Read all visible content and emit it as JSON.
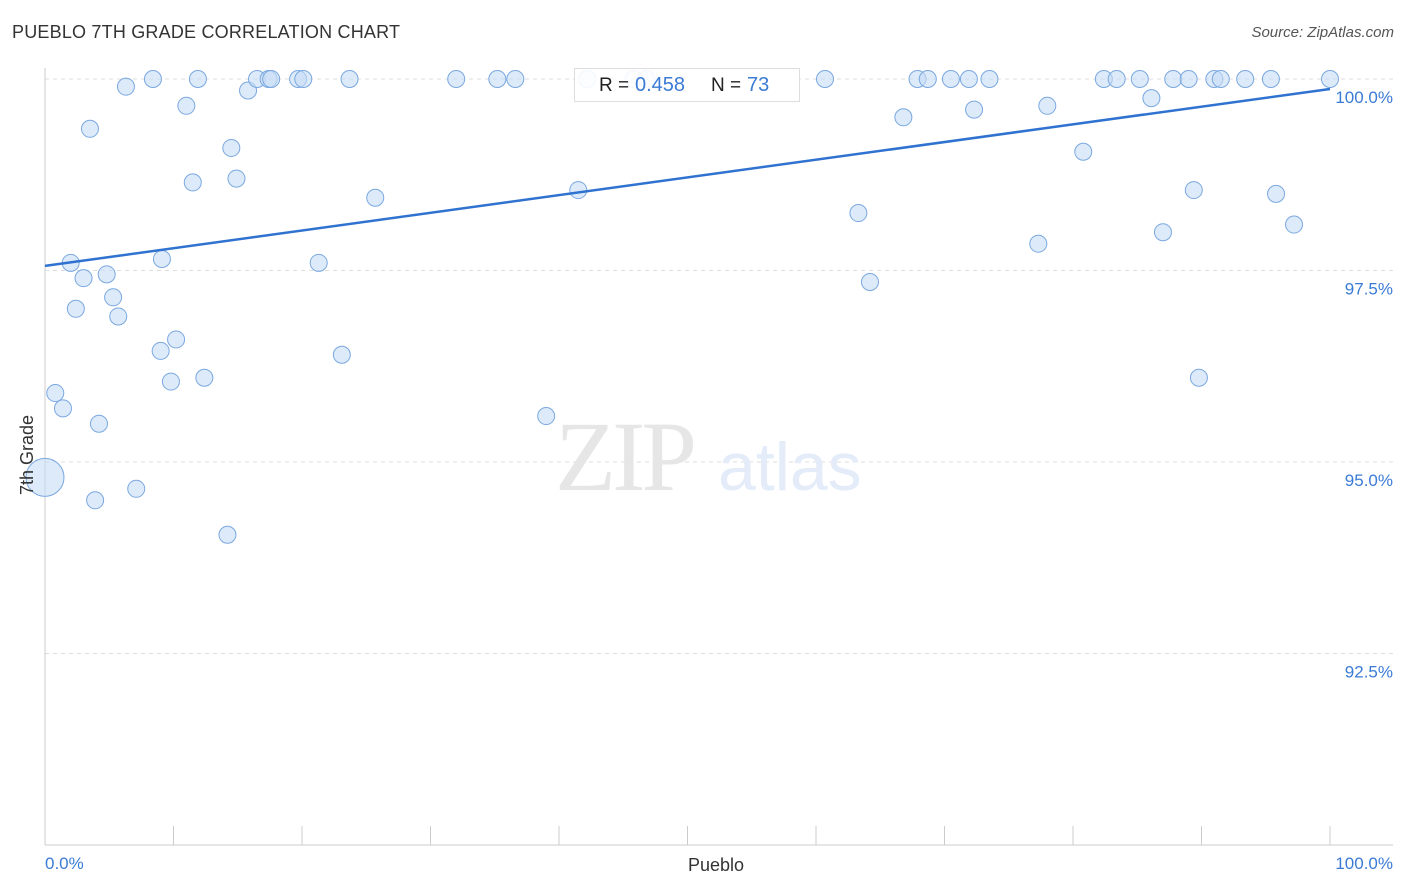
{
  "title": "PUEBLO 7TH GRADE CORRELATION CHART",
  "source": "Source: ZipAtlas.com",
  "watermark": {
    "zip": "ZIP",
    "atlas": "atlas"
  },
  "stats": {
    "r_label": "R =",
    "r_value": "0.458",
    "n_label": "N =",
    "n_value": "73"
  },
  "colors": {
    "point_fill": "#c7dcf5",
    "point_stroke": "#7aa8e0",
    "trend": "#2f72d0",
    "tick_label": "#3a7bd5",
    "grid": "#dddddd"
  },
  "chart_data": {
    "type": "scatter",
    "title": "PUEBLO 7TH GRADE CORRELATION CHART",
    "xlabel": "Pueblo",
    "ylabel": "7th Grade",
    "xlim": [
      0,
      100
    ],
    "ylim": [
      90.2,
      100.2
    ],
    "x_tick_labels": [
      "0.0%",
      "100.0%"
    ],
    "y_ticks": [
      92.5,
      95.0,
      97.5,
      100.0
    ],
    "y_tick_labels": [
      "92.5%",
      "95.0%",
      "97.5%",
      "100.0%"
    ],
    "grid": true,
    "r": 0.458,
    "n": 73,
    "trendline": {
      "x": [
        0,
        100
      ],
      "y": [
        97.56,
        99.87
      ]
    },
    "points": [
      {
        "x": 0.0,
        "y": 94.8,
        "big": true
      },
      {
        "x": 0.8,
        "y": 95.9
      },
      {
        "x": 1.4,
        "y": 95.7
      },
      {
        "x": 2.0,
        "y": 97.6
      },
      {
        "x": 2.4,
        "y": 97.0
      },
      {
        "x": 3.0,
        "y": 97.4
      },
      {
        "x": 3.5,
        "y": 99.35
      },
      {
        "x": 3.9,
        "y": 94.5
      },
      {
        "x": 4.2,
        "y": 95.5
      },
      {
        "x": 4.8,
        "y": 97.45
      },
      {
        "x": 5.3,
        "y": 97.15
      },
      {
        "x": 5.7,
        "y": 96.9
      },
      {
        "x": 6.3,
        "y": 99.9
      },
      {
        "x": 7.1,
        "y": 94.65
      },
      {
        "x": 8.4,
        "y": 100.0
      },
      {
        "x": 9.0,
        "y": 96.45
      },
      {
        "x": 9.1,
        "y": 97.65
      },
      {
        "x": 9.8,
        "y": 96.05
      },
      {
        "x": 10.2,
        "y": 96.6
      },
      {
        "x": 11.0,
        "y": 99.65
      },
      {
        "x": 11.5,
        "y": 98.65
      },
      {
        "x": 11.9,
        "y": 100.0
      },
      {
        "x": 12.4,
        "y": 96.1
      },
      {
        "x": 14.2,
        "y": 94.05
      },
      {
        "x": 14.5,
        "y": 99.1
      },
      {
        "x": 14.9,
        "y": 98.7
      },
      {
        "x": 15.8,
        "y": 99.85
      },
      {
        "x": 16.5,
        "y": 100.0
      },
      {
        "x": 17.4,
        "y": 100.0
      },
      {
        "x": 17.6,
        "y": 100.0
      },
      {
        "x": 19.7,
        "y": 100.0
      },
      {
        "x": 20.1,
        "y": 100.0
      },
      {
        "x": 21.3,
        "y": 97.6
      },
      {
        "x": 23.1,
        "y": 96.4
      },
      {
        "x": 23.7,
        "y": 100.0
      },
      {
        "x": 25.7,
        "y": 98.45
      },
      {
        "x": 32.0,
        "y": 100.0
      },
      {
        "x": 35.2,
        "y": 100.0
      },
      {
        "x": 36.6,
        "y": 100.0
      },
      {
        "x": 39.0,
        "y": 95.6
      },
      {
        "x": 41.5,
        "y": 98.55
      },
      {
        "x": 42.2,
        "y": 100.0
      },
      {
        "x": 45.8,
        "y": 100.0
      },
      {
        "x": 46.8,
        "y": 100.0
      },
      {
        "x": 60.7,
        "y": 100.0
      },
      {
        "x": 63.3,
        "y": 98.25
      },
      {
        "x": 64.2,
        "y": 97.35
      },
      {
        "x": 66.8,
        "y": 99.5
      },
      {
        "x": 67.9,
        "y": 100.0
      },
      {
        "x": 68.7,
        "y": 100.0
      },
      {
        "x": 70.5,
        "y": 100.0
      },
      {
        "x": 71.9,
        "y": 100.0
      },
      {
        "x": 72.3,
        "y": 99.6
      },
      {
        "x": 73.5,
        "y": 100.0
      },
      {
        "x": 77.3,
        "y": 97.85
      },
      {
        "x": 78.0,
        "y": 99.65
      },
      {
        "x": 80.8,
        "y": 99.05
      },
      {
        "x": 82.4,
        "y": 100.0
      },
      {
        "x": 83.4,
        "y": 100.0
      },
      {
        "x": 85.2,
        "y": 100.0
      },
      {
        "x": 86.1,
        "y": 99.75
      },
      {
        "x": 87.0,
        "y": 98.0
      },
      {
        "x": 87.8,
        "y": 100.0
      },
      {
        "x": 89.0,
        "y": 100.0
      },
      {
        "x": 89.4,
        "y": 98.55
      },
      {
        "x": 89.8,
        "y": 96.1
      },
      {
        "x": 91.0,
        "y": 100.0
      },
      {
        "x": 91.5,
        "y": 100.0
      },
      {
        "x": 93.4,
        "y": 100.0
      },
      {
        "x": 95.4,
        "y": 100.0
      },
      {
        "x": 95.8,
        "y": 98.5
      },
      {
        "x": 97.2,
        "y": 98.1
      },
      {
        "x": 100.0,
        "y": 100.0
      }
    ]
  }
}
